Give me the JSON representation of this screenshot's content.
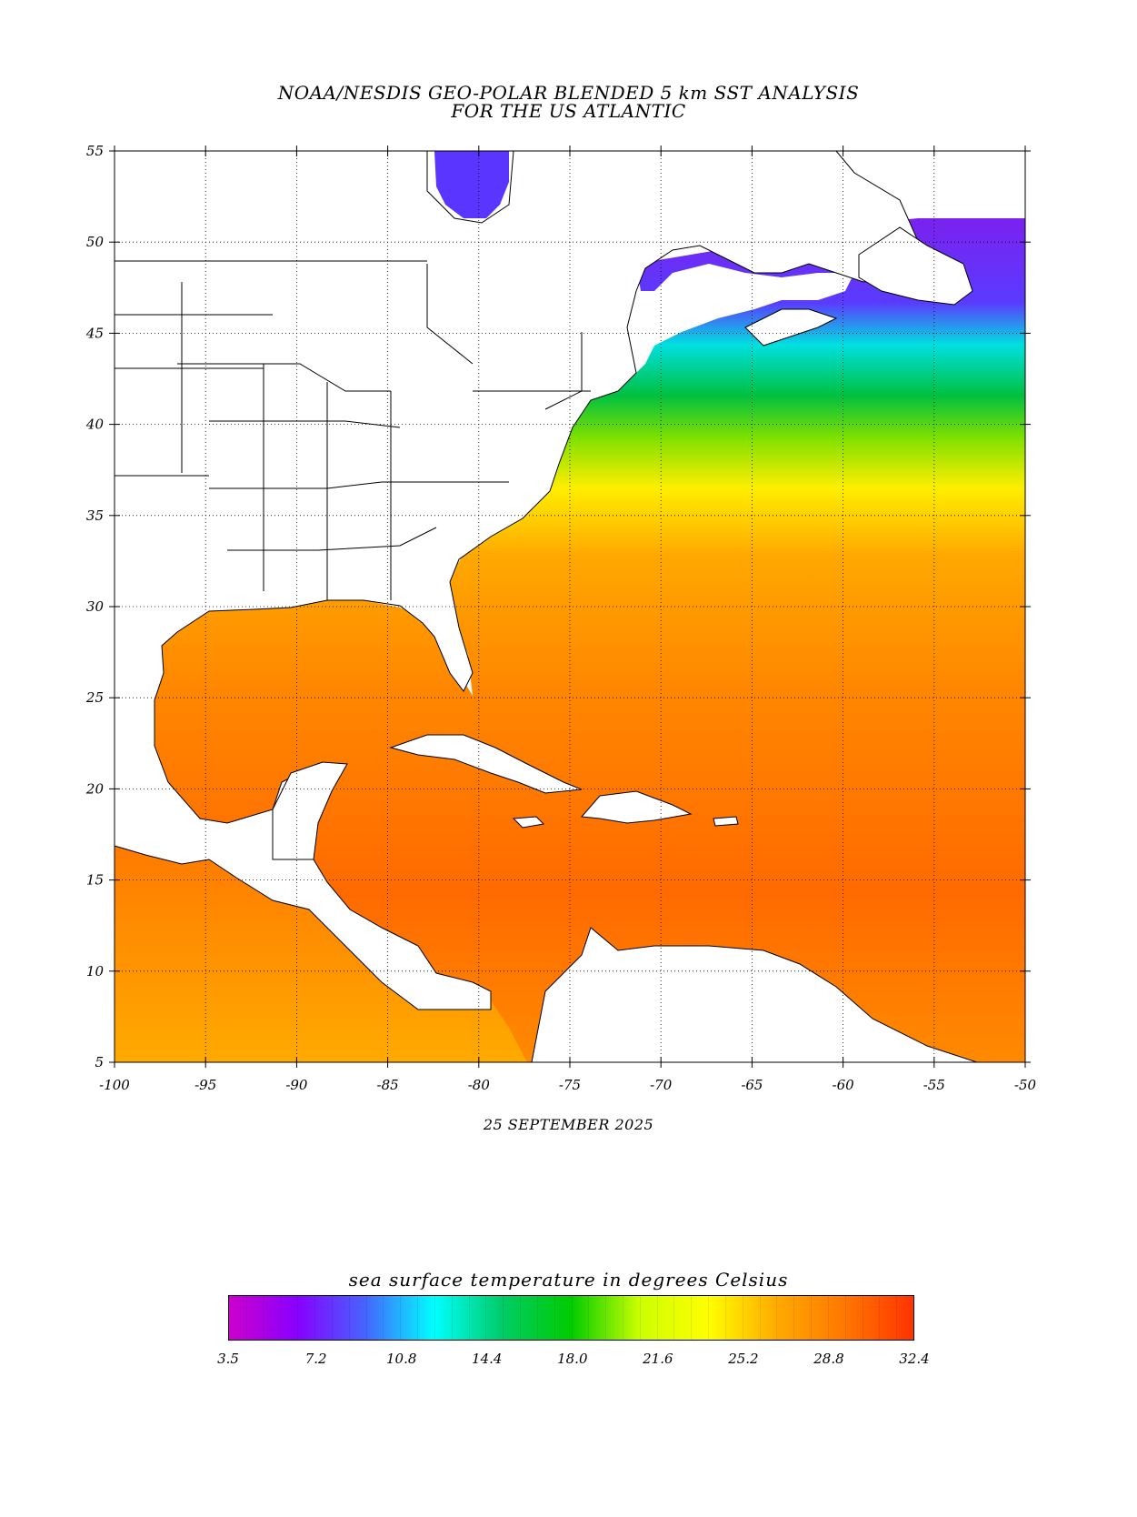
{
  "header": {
    "title_line1": "NOAA/NESDIS GEO-POLAR BLENDED 5 km SST ANALYSIS",
    "title_line2": "FOR THE US ATLANTIC"
  },
  "map": {
    "lon_range": [
      -100,
      -50
    ],
    "lat_range": [
      5,
      55
    ],
    "lon_ticks": [
      "-100",
      "-95",
      "-90",
      "-85",
      "-80",
      "-75",
      "-70",
      "-65",
      "-60",
      "-55",
      "-50"
    ],
    "lat_ticks": [
      "55",
      "50",
      "45",
      "40",
      "35",
      "30",
      "25",
      "20",
      "15",
      "10",
      "5"
    ],
    "gridlines": true,
    "land_color": "#ffffff",
    "date": "25 SEPTEMBER 2025"
  },
  "colorbar": {
    "title": "sea surface temperature in degrees Celsius",
    "ticks": [
      "3.5",
      "7.2",
      "10.8",
      "14.4",
      "18.0",
      "21.6",
      "25.2",
      "28.8",
      "32.4"
    ],
    "range": [
      3.5,
      32.4
    ],
    "colors": [
      "#cc00cc",
      "#8800ff",
      "#4466ff",
      "#00ffff",
      "#00cc66",
      "#00cc00",
      "#ccff00",
      "#ffff00",
      "#ffaa00",
      "#ff7700",
      "#ff3300"
    ]
  }
}
